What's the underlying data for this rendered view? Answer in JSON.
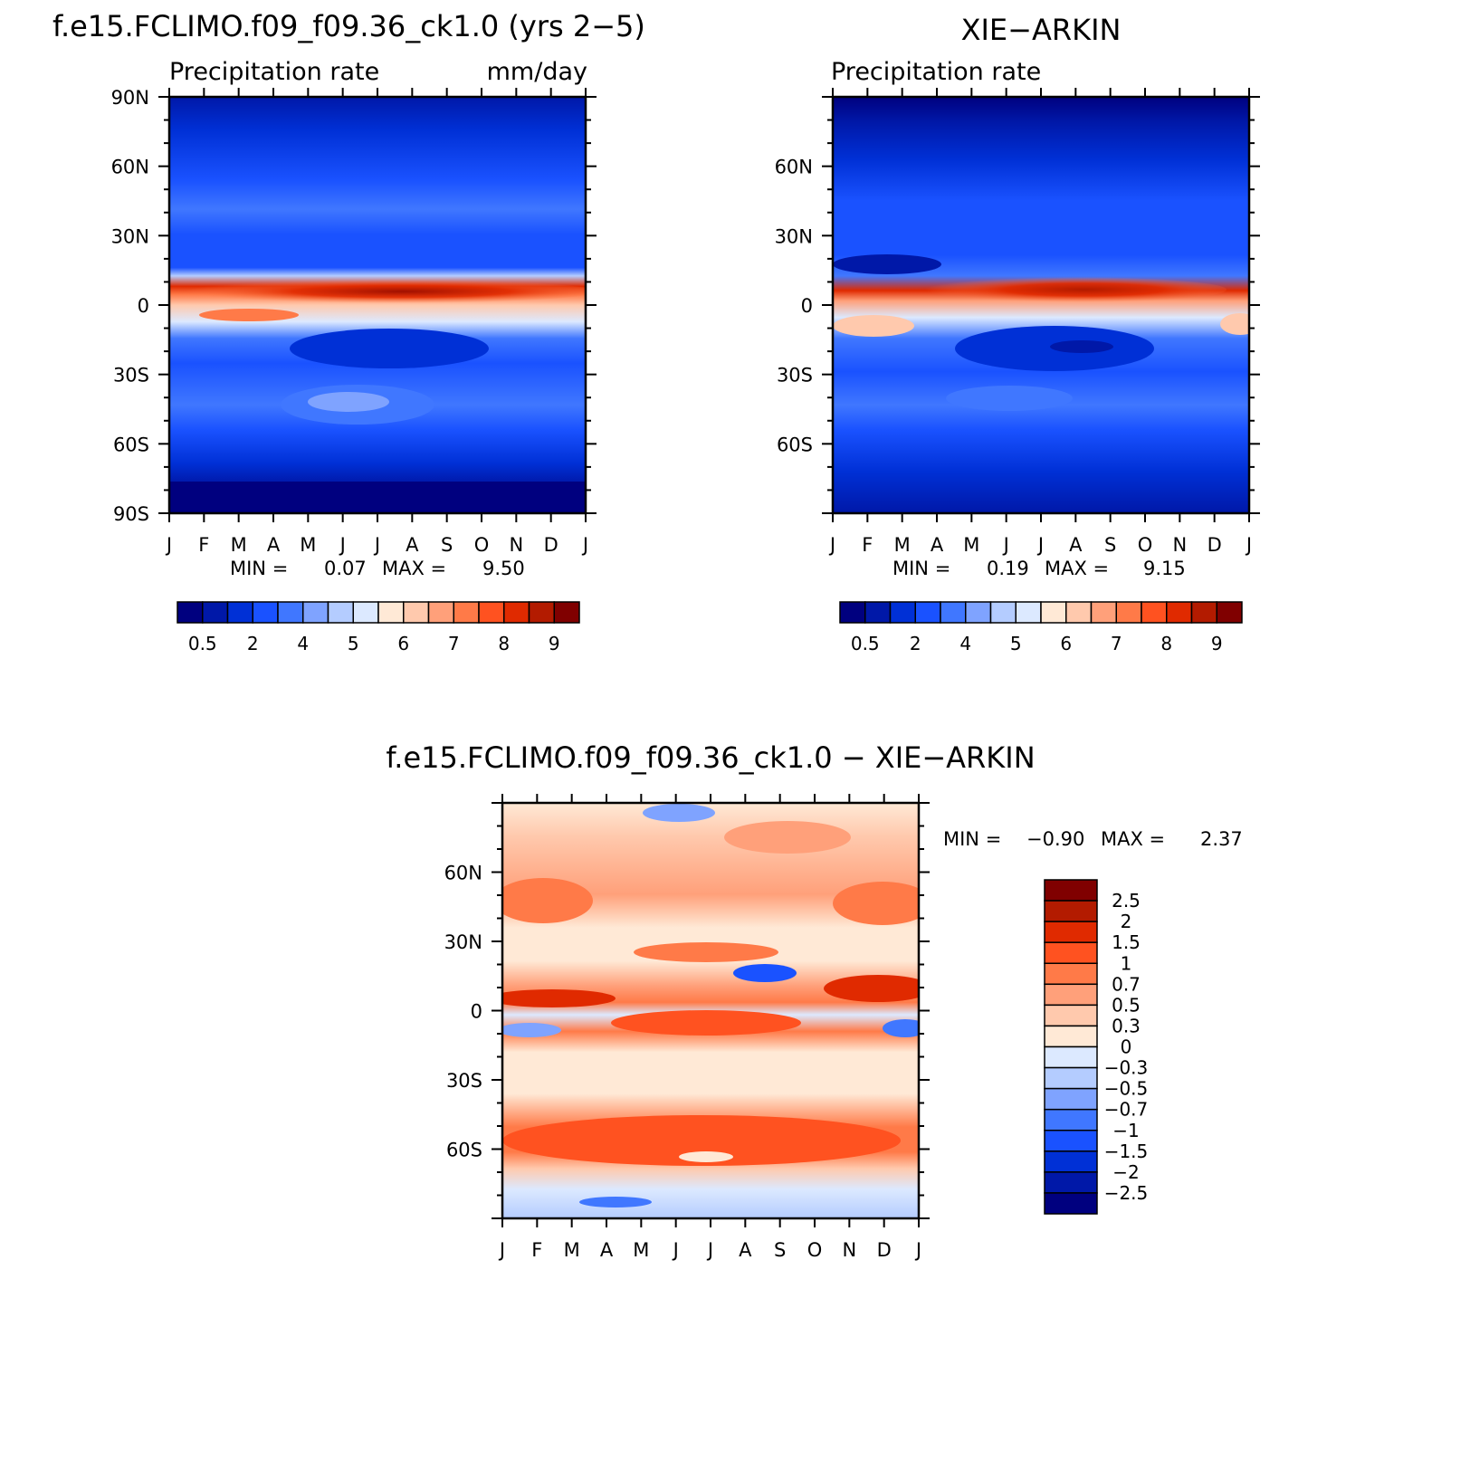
{
  "chart_data": [
    {
      "type": "heatmap",
      "title": "f.e15.FCLIMO.f09_f09.36_ck1.0 (yrs 2−5)",
      "left_subtitle": "Precipitation rate",
      "right_subtitle": "mm/day",
      "x_tick_labels": [
        "J",
        "F",
        "M",
        "A",
        "M",
        "J",
        "J",
        "A",
        "S",
        "O",
        "N",
        "D",
        "J"
      ],
      "y_tick_labels": [
        "90N",
        "60N",
        "30N",
        "0",
        "30S",
        "60S",
        "90S"
      ],
      "ylim": [
        -90,
        90
      ],
      "min_label": "MIN =",
      "min_value": "0.07",
      "max_label": "MAX =",
      "max_value": "9.50",
      "colorbar": {
        "orientation": "horizontal",
        "colors": [
          "#00007f",
          "#0018a8",
          "#0030d6",
          "#1a52ff",
          "#4077ff",
          "#7fa3ff",
          "#b4ccff",
          "#dce9ff",
          "#ffe9d6",
          "#ffc9ad",
          "#ffa07a",
          "#ff7a48",
          "#ff5220",
          "#e02a00",
          "#b31b00",
          "#800000"
        ],
        "labels": [
          "0.5",
          "2",
          "4",
          "5",
          "6",
          "7",
          "8",
          "9"
        ]
      }
    },
    {
      "type": "heatmap",
      "title": "XIE−ARKIN",
      "left_subtitle": "Precipitation rate",
      "x_tick_labels": [
        "J",
        "F",
        "M",
        "A",
        "M",
        "J",
        "J",
        "A",
        "S",
        "O",
        "N",
        "D",
        "J"
      ],
      "y_tick_labels": [
        "60N",
        "30N",
        "0",
        "30S",
        "60S"
      ],
      "ylim": [
        -90,
        90
      ],
      "min_label": "MIN =",
      "min_value": "0.19",
      "max_label": "MAX =",
      "max_value": "9.15",
      "colorbar": {
        "orientation": "horizontal",
        "colors": [
          "#00007f",
          "#0018a8",
          "#0030d6",
          "#1a52ff",
          "#4077ff",
          "#7fa3ff",
          "#b4ccff",
          "#dce9ff",
          "#ffe9d6",
          "#ffc9ad",
          "#ffa07a",
          "#ff7a48",
          "#ff5220",
          "#e02a00",
          "#b31b00",
          "#800000"
        ],
        "labels": [
          "0.5",
          "2",
          "4",
          "5",
          "6",
          "7",
          "8",
          "9"
        ]
      }
    },
    {
      "type": "heatmap",
      "title": "f.e15.FCLIMO.f09_f09.36_ck1.0 − XIE−ARKIN",
      "x_tick_labels": [
        "J",
        "F",
        "M",
        "A",
        "M",
        "J",
        "J",
        "A",
        "S",
        "O",
        "N",
        "D",
        "J"
      ],
      "y_tick_labels": [
        "60N",
        "30N",
        "0",
        "30S",
        "60S"
      ],
      "ylim": [
        -90,
        90
      ],
      "min_label": "MIN =",
      "min_value": "−0.90",
      "max_label": "MAX =",
      "max_value": "2.37",
      "colorbar": {
        "orientation": "vertical",
        "colors": [
          "#00007f",
          "#0018a8",
          "#0030d6",
          "#1a52ff",
          "#4077ff",
          "#7fa3ff",
          "#b4ccff",
          "#dce9ff",
          "#ffe9d6",
          "#ffc9ad",
          "#ffa07a",
          "#ff7a48",
          "#ff5220",
          "#e02a00",
          "#b31b00",
          "#800000"
        ],
        "labels": [
          "2.5",
          "2",
          "1.5",
          "1",
          "0.7",
          "0.5",
          "0.3",
          "0",
          "−0.3",
          "−0.5",
          "−0.7",
          "−1",
          "−1.5",
          "−2",
          "−2.5"
        ]
      }
    }
  ]
}
